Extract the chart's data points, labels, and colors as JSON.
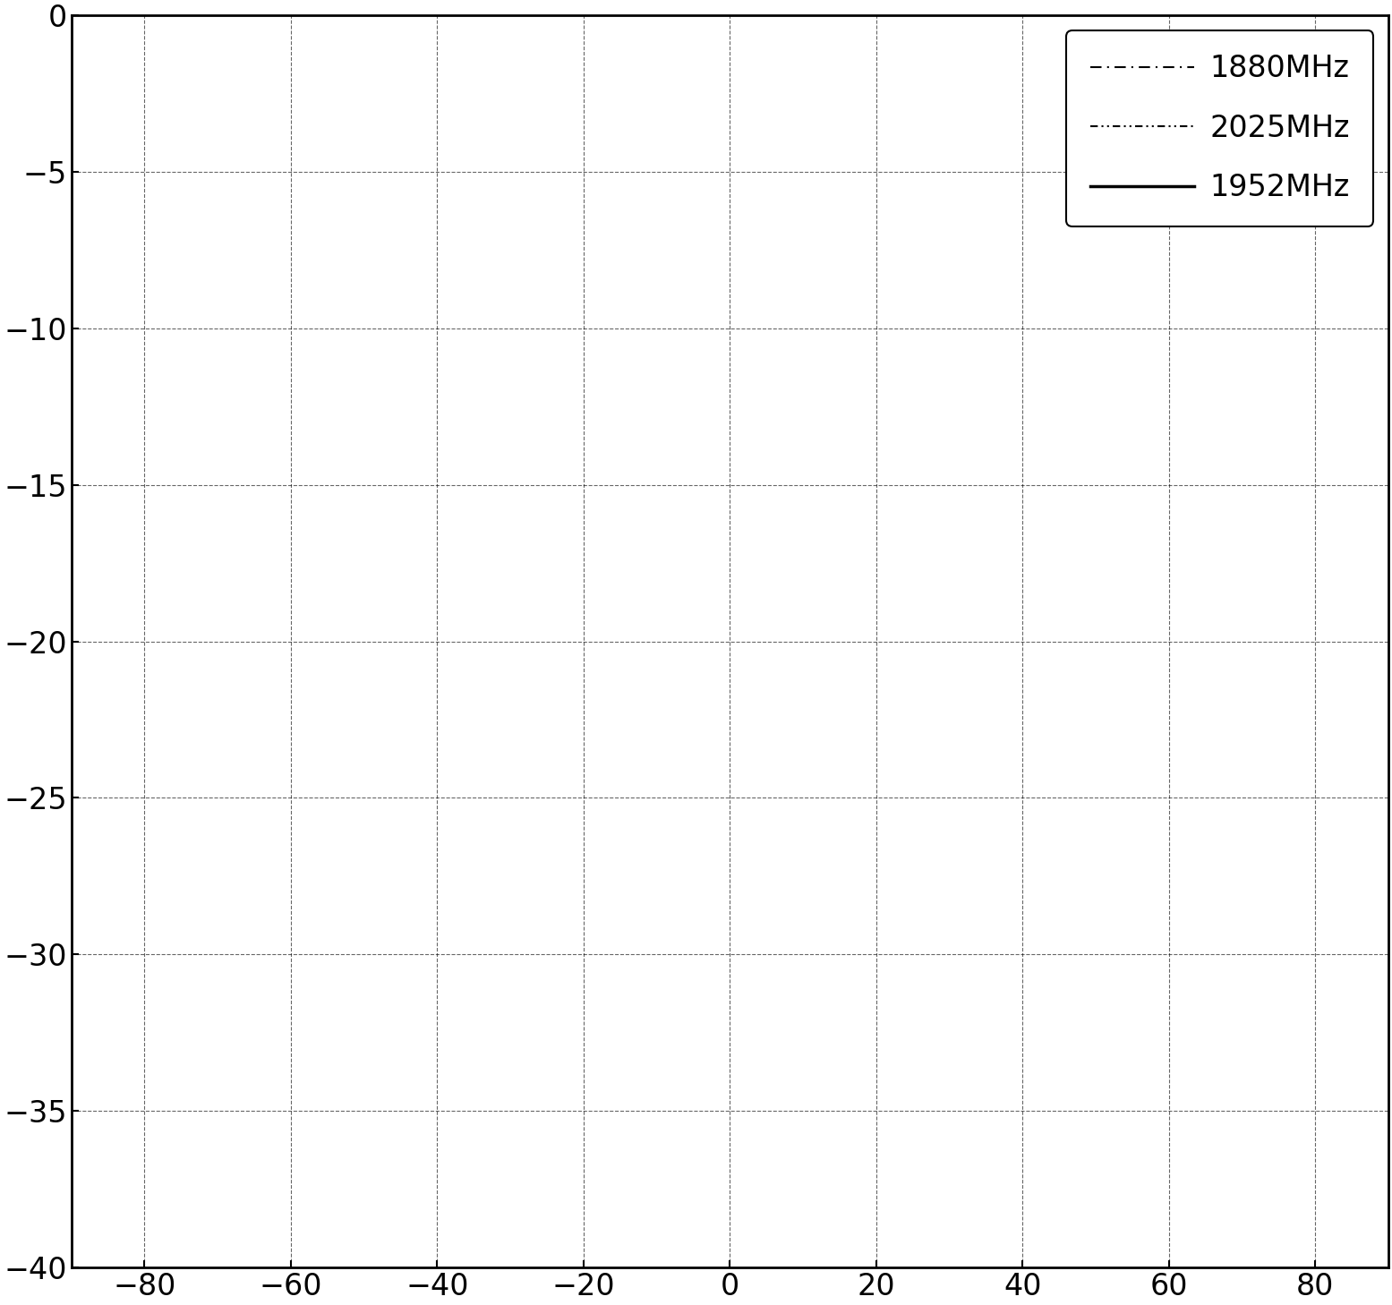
{
  "title": "",
  "xlim": [
    -90,
    90
  ],
  "ylim": [
    -40,
    0
  ],
  "xticks": [
    -80,
    -60,
    -40,
    -20,
    0,
    20,
    40,
    60,
    80
  ],
  "yticks": [
    0,
    -5,
    -10,
    -15,
    -20,
    -25,
    -30,
    -35,
    -40
  ],
  "xlabel": "",
  "ylabel": "",
  "grid_color": "#000000",
  "grid_linestyle": "--",
  "background_color": "#ffffff",
  "legend_entries": [
    "1880MHz",
    "2025MHz",
    "1952MHz"
  ],
  "N": 12,
  "freq_design_mhz": 1952,
  "freq_1880_mhz": 1880,
  "freq_2025_mhz": 2025,
  "freq_1952_mhz": 1952,
  "d_meters": 0.0769,
  "taylor_sll_db": 25,
  "taylor_nbar": 4
}
